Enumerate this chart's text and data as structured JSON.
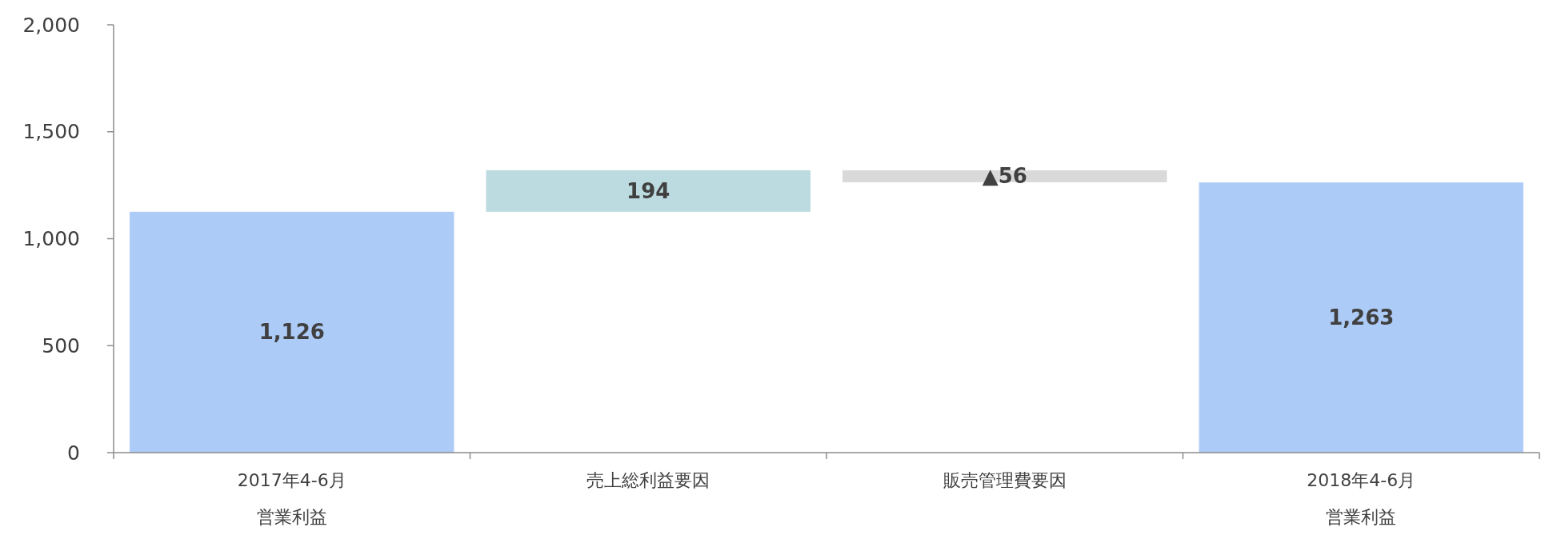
{
  "chart_data": {
    "type": "bar",
    "categories": [
      "2017年4-6月営業利益",
      "売上総利益要因",
      "販売管理費要因",
      "2018年4-6月営業利益"
    ],
    "values": [
      1126,
      194,
      -56,
      1263
    ],
    "base": [
      0,
      1126,
      1320,
      0
    ],
    "colors": [
      "#adcbf7",
      "#bcdbe0",
      "#d9d9d9",
      "#adcbf7"
    ],
    "value_labels": [
      "1,126",
      "194",
      "▲56",
      "1,263"
    ],
    "ylim": [
      0,
      2000
    ],
    "yticks": [
      0,
      500,
      {
        "value": 1000,
        "label": "1,000"
      },
      {
        "value": 1500,
        "label": "1,500"
      },
      {
        "value": 2000,
        "label": "2,000"
      }
    ]
  }
}
